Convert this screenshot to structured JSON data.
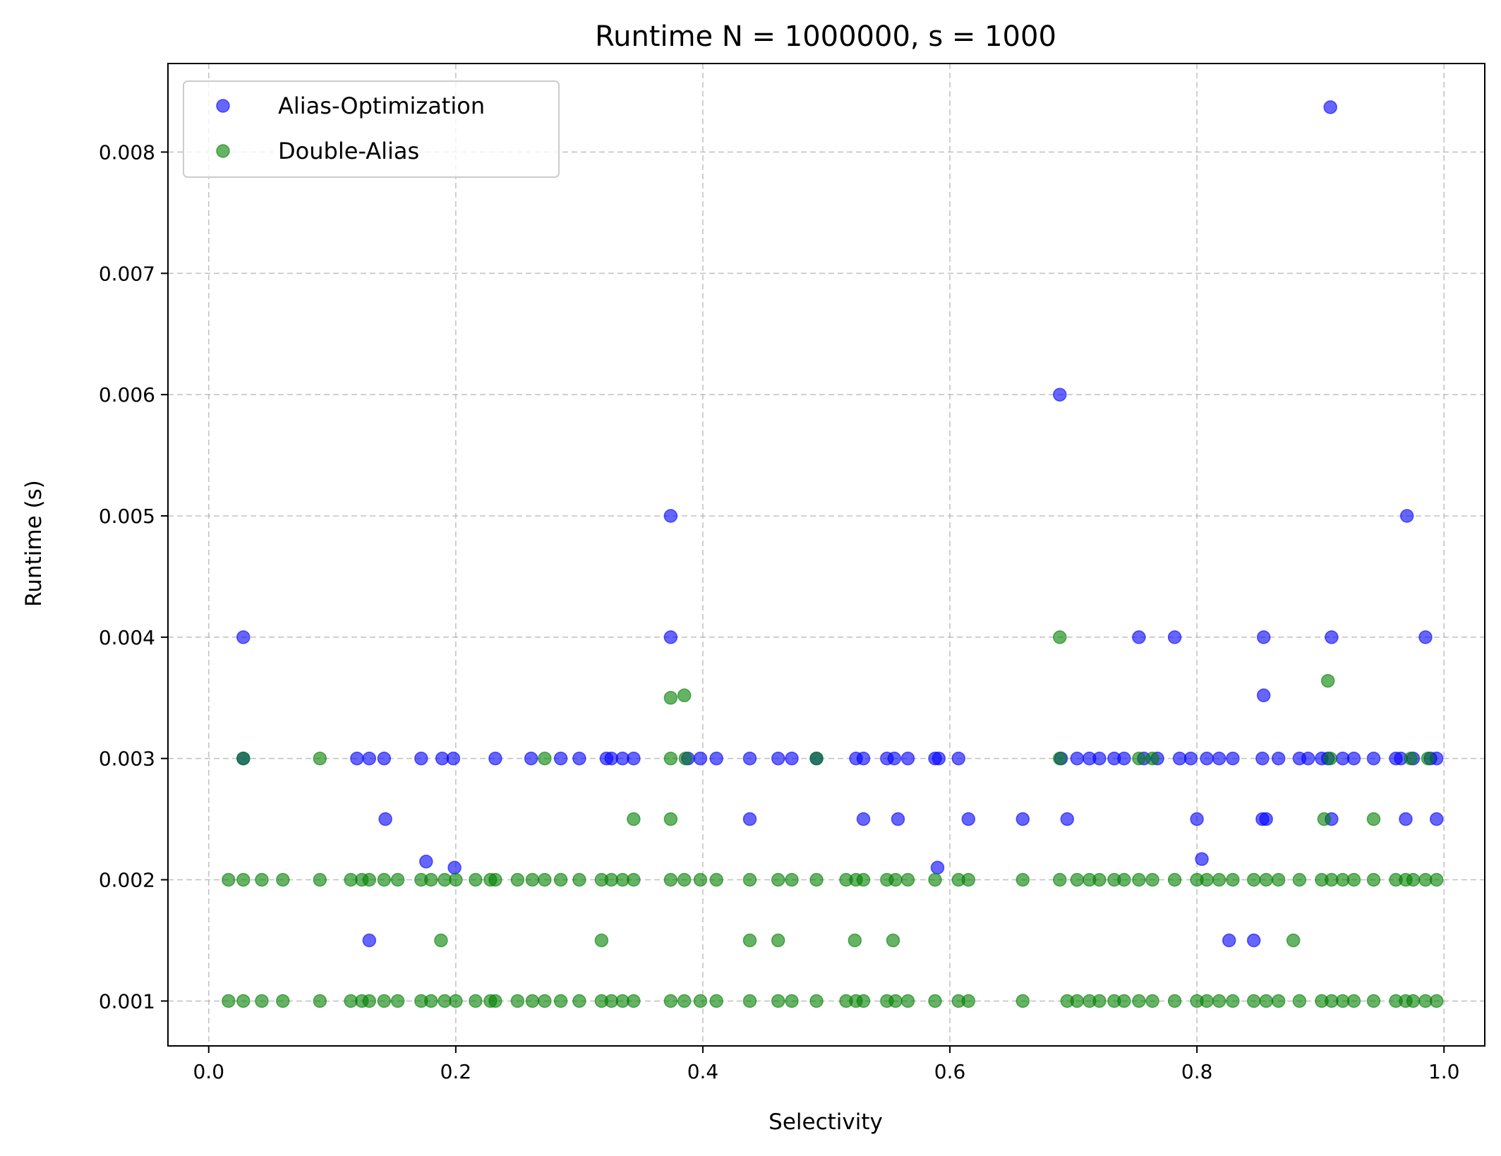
{
  "chart_data": {
    "type": "scatter",
    "title": "Runtime N = 1000000, s = 1000",
    "xlabel": "Selectivity",
    "ylabel": "Runtime (s)",
    "xlim": [
      -0.033,
      1.033
    ],
    "ylim": [
      0.00063,
      0.00873
    ],
    "xticks": [
      0.0,
      0.2,
      0.4,
      0.6,
      0.8,
      1.0
    ],
    "xtick_labels": [
      "0.0",
      "0.2",
      "0.4",
      "0.6",
      "0.8",
      "1.0"
    ],
    "yticks": [
      0.001,
      0.002,
      0.003,
      0.004,
      0.005,
      0.006,
      0.007,
      0.008
    ],
    "ytick_labels": [
      "0.001",
      "0.002",
      "0.003",
      "0.004",
      "0.005",
      "0.006",
      "0.007",
      "0.008"
    ],
    "grid": true,
    "legend": "top-left",
    "series": [
      {
        "name": "Alias-Optimization",
        "color": "#0000ff",
        "points": [
          [
            0.028,
            0.004
          ],
          [
            0.028,
            0.003
          ],
          [
            0.12,
            0.003
          ],
          [
            0.13,
            0.003
          ],
          [
            0.142,
            0.003
          ],
          [
            0.143,
            0.0025
          ],
          [
            0.13,
            0.0015
          ],
          [
            0.172,
            0.003
          ],
          [
            0.176,
            0.00215
          ],
          [
            0.189,
            0.003
          ],
          [
            0.198,
            0.003
          ],
          [
            0.199,
            0.0021
          ],
          [
            0.232,
            0.003
          ],
          [
            0.261,
            0.003
          ],
          [
            0.285,
            0.003
          ],
          [
            0.3,
            0.003
          ],
          [
            0.322,
            0.003
          ],
          [
            0.326,
            0.003
          ],
          [
            0.335,
            0.003
          ],
          [
            0.344,
            0.003
          ],
          [
            0.374,
            0.005
          ],
          [
            0.374,
            0.004
          ],
          [
            0.388,
            0.003
          ],
          [
            0.398,
            0.003
          ],
          [
            0.411,
            0.003
          ],
          [
            0.438,
            0.003
          ],
          [
            0.438,
            0.0025
          ],
          [
            0.461,
            0.003
          ],
          [
            0.472,
            0.003
          ],
          [
            0.492,
            0.003
          ],
          [
            0.524,
            0.003
          ],
          [
            0.53,
            0.003
          ],
          [
            0.53,
            0.0025
          ],
          [
            0.549,
            0.003
          ],
          [
            0.555,
            0.003
          ],
          [
            0.558,
            0.0025
          ],
          [
            0.566,
            0.003
          ],
          [
            0.588,
            0.003
          ],
          [
            0.591,
            0.003
          ],
          [
            0.59,
            0.0021
          ],
          [
            0.607,
            0.003
          ],
          [
            0.615,
            0.0025
          ],
          [
            0.659,
            0.0025
          ],
          [
            0.689,
            0.006
          ],
          [
            0.69,
            0.003
          ],
          [
            0.695,
            0.0025
          ],
          [
            0.703,
            0.003
          ],
          [
            0.713,
            0.003
          ],
          [
            0.721,
            0.003
          ],
          [
            0.733,
            0.003
          ],
          [
            0.741,
            0.003
          ],
          [
            0.753,
            0.004
          ],
          [
            0.757,
            0.003
          ],
          [
            0.768,
            0.003
          ],
          [
            0.782,
            0.004
          ],
          [
            0.786,
            0.003
          ],
          [
            0.795,
            0.003
          ],
          [
            0.8,
            0.0025
          ],
          [
            0.804,
            0.00217
          ],
          [
            0.808,
            0.003
          ],
          [
            0.818,
            0.003
          ],
          [
            0.829,
            0.003
          ],
          [
            0.826,
            0.0015
          ],
          [
            0.846,
            0.0015
          ],
          [
            0.854,
            0.004
          ],
          [
            0.854,
            0.00352
          ],
          [
            0.853,
            0.003
          ],
          [
            0.853,
            0.0025
          ],
          [
            0.856,
            0.0025
          ],
          [
            0.866,
            0.003
          ],
          [
            0.883,
            0.003
          ],
          [
            0.89,
            0.003
          ],
          [
            0.901,
            0.003
          ],
          [
            0.908,
            0.00837
          ],
          [
            0.909,
            0.004
          ],
          [
            0.906,
            0.003
          ],
          [
            0.909,
            0.0025
          ],
          [
            0.918,
            0.003
          ],
          [
            0.927,
            0.003
          ],
          [
            0.943,
            0.003
          ],
          [
            0.961,
            0.003
          ],
          [
            0.965,
            0.003
          ],
          [
            0.97,
            0.005
          ],
          [
            0.969,
            0.0025
          ],
          [
            0.975,
            0.003
          ],
          [
            0.985,
            0.004
          ],
          [
            0.989,
            0.003
          ],
          [
            0.994,
            0.003
          ],
          [
            0.994,
            0.0025
          ]
        ]
      },
      {
        "name": "Double-Alias",
        "color": "#008000",
        "points": [
          [
            0.028,
            0.003
          ],
          [
            0.09,
            0.003
          ],
          [
            0.272,
            0.003
          ],
          [
            0.344,
            0.0025
          ],
          [
            0.374,
            0.0035
          ],
          [
            0.385,
            0.00352
          ],
          [
            0.374,
            0.003
          ],
          [
            0.386,
            0.003
          ],
          [
            0.374,
            0.0025
          ],
          [
            0.492,
            0.003
          ],
          [
            0.689,
            0.004
          ],
          [
            0.689,
            0.003
          ],
          [
            0.753,
            0.003
          ],
          [
            0.764,
            0.003
          ],
          [
            0.906,
            0.00364
          ],
          [
            0.903,
            0.0025
          ],
          [
            0.943,
            0.0025
          ],
          [
            0.908,
            0.003
          ],
          [
            0.973,
            0.003
          ],
          [
            0.987,
            0.003
          ],
          [
            0.188,
            0.0015
          ],
          [
            0.318,
            0.0015
          ],
          [
            0.438,
            0.0015
          ],
          [
            0.461,
            0.0015
          ],
          [
            0.523,
            0.0015
          ],
          [
            0.554,
            0.0015
          ],
          [
            0.878,
            0.0015
          ],
          [
            0.016,
            0.002
          ],
          [
            0.028,
            0.002
          ],
          [
            0.043,
            0.002
          ],
          [
            0.06,
            0.002
          ],
          [
            0.09,
            0.002
          ],
          [
            0.115,
            0.002
          ],
          [
            0.124,
            0.002
          ],
          [
            0.13,
            0.002
          ],
          [
            0.142,
            0.002
          ],
          [
            0.153,
            0.002
          ],
          [
            0.172,
            0.002
          ],
          [
            0.18,
            0.002
          ],
          [
            0.191,
            0.002
          ],
          [
            0.2,
            0.002
          ],
          [
            0.216,
            0.002
          ],
          [
            0.228,
            0.002
          ],
          [
            0.232,
            0.002
          ],
          [
            0.25,
            0.002
          ],
          [
            0.262,
            0.002
          ],
          [
            0.272,
            0.002
          ],
          [
            0.285,
            0.002
          ],
          [
            0.3,
            0.002
          ],
          [
            0.318,
            0.002
          ],
          [
            0.326,
            0.002
          ],
          [
            0.335,
            0.002
          ],
          [
            0.344,
            0.002
          ],
          [
            0.374,
            0.002
          ],
          [
            0.385,
            0.002
          ],
          [
            0.398,
            0.002
          ],
          [
            0.411,
            0.002
          ],
          [
            0.438,
            0.002
          ],
          [
            0.461,
            0.002
          ],
          [
            0.472,
            0.002
          ],
          [
            0.492,
            0.002
          ],
          [
            0.516,
            0.002
          ],
          [
            0.524,
            0.002
          ],
          [
            0.53,
            0.002
          ],
          [
            0.549,
            0.002
          ],
          [
            0.556,
            0.002
          ],
          [
            0.566,
            0.002
          ],
          [
            0.588,
            0.002
          ],
          [
            0.607,
            0.002
          ],
          [
            0.615,
            0.002
          ],
          [
            0.659,
            0.002
          ],
          [
            0.689,
            0.002
          ],
          [
            0.703,
            0.002
          ],
          [
            0.713,
            0.002
          ],
          [
            0.721,
            0.002
          ],
          [
            0.733,
            0.002
          ],
          [
            0.741,
            0.002
          ],
          [
            0.753,
            0.002
          ],
          [
            0.764,
            0.002
          ],
          [
            0.782,
            0.002
          ],
          [
            0.8,
            0.002
          ],
          [
            0.808,
            0.002
          ],
          [
            0.818,
            0.002
          ],
          [
            0.829,
            0.002
          ],
          [
            0.846,
            0.002
          ],
          [
            0.856,
            0.002
          ],
          [
            0.866,
            0.002
          ],
          [
            0.883,
            0.002
          ],
          [
            0.901,
            0.002
          ],
          [
            0.909,
            0.002
          ],
          [
            0.918,
            0.002
          ],
          [
            0.927,
            0.002
          ],
          [
            0.943,
            0.002
          ],
          [
            0.961,
            0.002
          ],
          [
            0.969,
            0.002
          ],
          [
            0.975,
            0.002
          ],
          [
            0.985,
            0.002
          ],
          [
            0.994,
            0.002
          ],
          [
            0.016,
            0.001
          ],
          [
            0.028,
            0.001
          ],
          [
            0.043,
            0.001
          ],
          [
            0.06,
            0.001
          ],
          [
            0.09,
            0.001
          ],
          [
            0.115,
            0.001
          ],
          [
            0.124,
            0.001
          ],
          [
            0.13,
            0.001
          ],
          [
            0.142,
            0.001
          ],
          [
            0.153,
            0.001
          ],
          [
            0.172,
            0.001
          ],
          [
            0.18,
            0.001
          ],
          [
            0.191,
            0.001
          ],
          [
            0.2,
            0.001
          ],
          [
            0.216,
            0.001
          ],
          [
            0.228,
            0.001
          ],
          [
            0.232,
            0.001
          ],
          [
            0.25,
            0.001
          ],
          [
            0.262,
            0.001
          ],
          [
            0.272,
            0.001
          ],
          [
            0.285,
            0.001
          ],
          [
            0.3,
            0.001
          ],
          [
            0.318,
            0.001
          ],
          [
            0.326,
            0.001
          ],
          [
            0.335,
            0.001
          ],
          [
            0.344,
            0.001
          ],
          [
            0.374,
            0.001
          ],
          [
            0.385,
            0.001
          ],
          [
            0.398,
            0.001
          ],
          [
            0.411,
            0.001
          ],
          [
            0.438,
            0.001
          ],
          [
            0.461,
            0.001
          ],
          [
            0.472,
            0.001
          ],
          [
            0.492,
            0.001
          ],
          [
            0.516,
            0.001
          ],
          [
            0.524,
            0.001
          ],
          [
            0.53,
            0.001
          ],
          [
            0.549,
            0.001
          ],
          [
            0.556,
            0.001
          ],
          [
            0.566,
            0.001
          ],
          [
            0.588,
            0.001
          ],
          [
            0.607,
            0.001
          ],
          [
            0.615,
            0.001
          ],
          [
            0.659,
            0.001
          ],
          [
            0.695,
            0.001
          ],
          [
            0.703,
            0.001
          ],
          [
            0.713,
            0.001
          ],
          [
            0.721,
            0.001
          ],
          [
            0.733,
            0.001
          ],
          [
            0.741,
            0.001
          ],
          [
            0.753,
            0.001
          ],
          [
            0.764,
            0.001
          ],
          [
            0.782,
            0.001
          ],
          [
            0.8,
            0.001
          ],
          [
            0.808,
            0.001
          ],
          [
            0.818,
            0.001
          ],
          [
            0.829,
            0.001
          ],
          [
            0.846,
            0.001
          ],
          [
            0.856,
            0.001
          ],
          [
            0.866,
            0.001
          ],
          [
            0.883,
            0.001
          ],
          [
            0.901,
            0.001
          ],
          [
            0.909,
            0.001
          ],
          [
            0.918,
            0.001
          ],
          [
            0.927,
            0.001
          ],
          [
            0.943,
            0.001
          ],
          [
            0.961,
            0.001
          ],
          [
            0.969,
            0.001
          ],
          [
            0.975,
            0.001
          ],
          [
            0.985,
            0.001
          ],
          [
            0.994,
            0.001
          ]
        ]
      }
    ]
  }
}
